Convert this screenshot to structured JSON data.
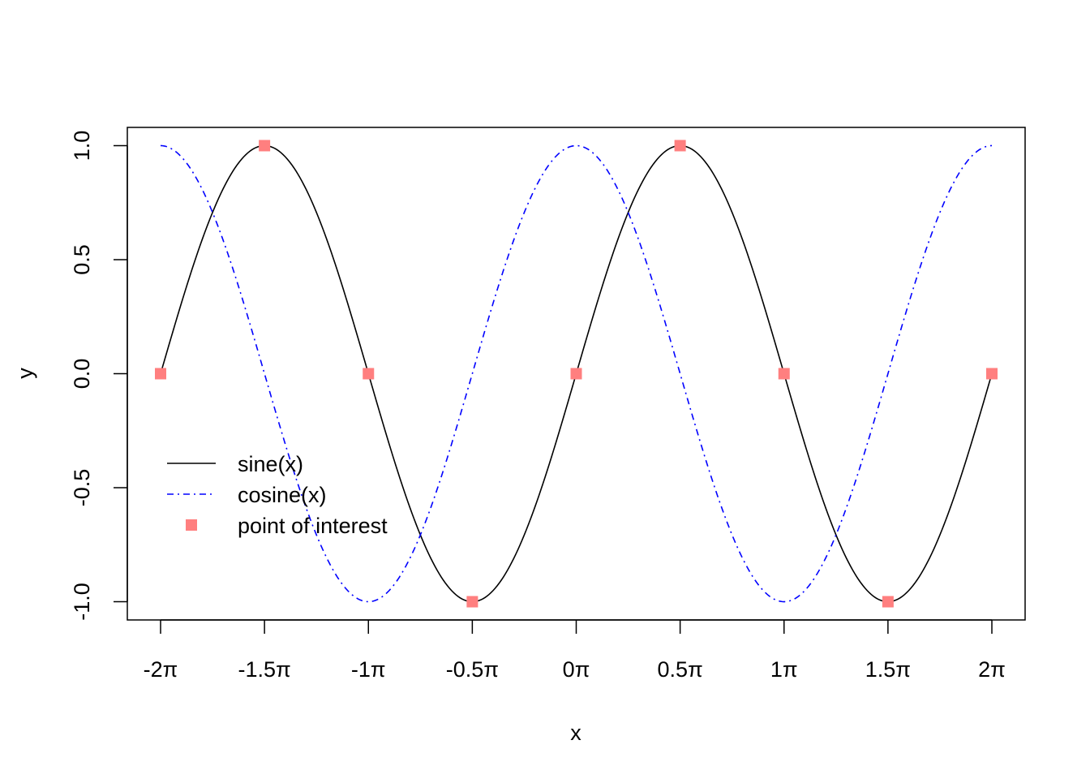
{
  "chart_data": {
    "type": "line",
    "xlabel": "x",
    "ylabel": "y",
    "xlim_pi": [
      -2.16,
      2.16
    ],
    "ylim": [
      -1.08,
      1.08
    ],
    "grid": false,
    "legend_position": "left",
    "x_ticks": [
      {
        "value_pi": -2,
        "label": "-2π"
      },
      {
        "value_pi": -1.5,
        "label": "-1.5π"
      },
      {
        "value_pi": -1,
        "label": "-1π"
      },
      {
        "value_pi": -0.5,
        "label": "-0.5π"
      },
      {
        "value_pi": 0,
        "label": "0π"
      },
      {
        "value_pi": 0.5,
        "label": "0.5π"
      },
      {
        "value_pi": 1,
        "label": "1π"
      },
      {
        "value_pi": 1.5,
        "label": "1.5π"
      },
      {
        "value_pi": 2,
        "label": "2π"
      }
    ],
    "y_ticks": [
      {
        "value": -1,
        "label": "-1.0"
      },
      {
        "value": -0.5,
        "label": "-0.5"
      },
      {
        "value": 0,
        "label": "0.0"
      },
      {
        "value": 0.5,
        "label": "0.5"
      },
      {
        "value": 1,
        "label": "1.0"
      }
    ],
    "series": [
      {
        "name": "sine(x)",
        "function": "sin",
        "x_range_pi": [
          -2,
          2
        ],
        "color": "#000000",
        "line_style": "solid"
      },
      {
        "name": "cosine(x)",
        "function": "cos",
        "x_range_pi": [
          -2,
          2
        ],
        "color": "#0000ff",
        "line_style": "dash-dot"
      }
    ],
    "points": {
      "name": "point of interest",
      "color": "#ff7f7f",
      "marker": "square",
      "x_pi": [
        -2,
        -1.5,
        -1,
        -0.5,
        0,
        0.5,
        1,
        1.5,
        2
      ],
      "y": [
        0,
        1,
        0,
        -1,
        0,
        1,
        0,
        -1,
        0
      ]
    },
    "legend": [
      {
        "label": "sine(x)",
        "kind": "line",
        "color": "#000000",
        "line_style": "solid"
      },
      {
        "label": "cosine(x)",
        "kind": "line",
        "color": "#0000ff",
        "line_style": "dash-dot"
      },
      {
        "label": "point of interest",
        "kind": "marker",
        "color": "#ff7f7f",
        "marker": "square"
      }
    ]
  }
}
